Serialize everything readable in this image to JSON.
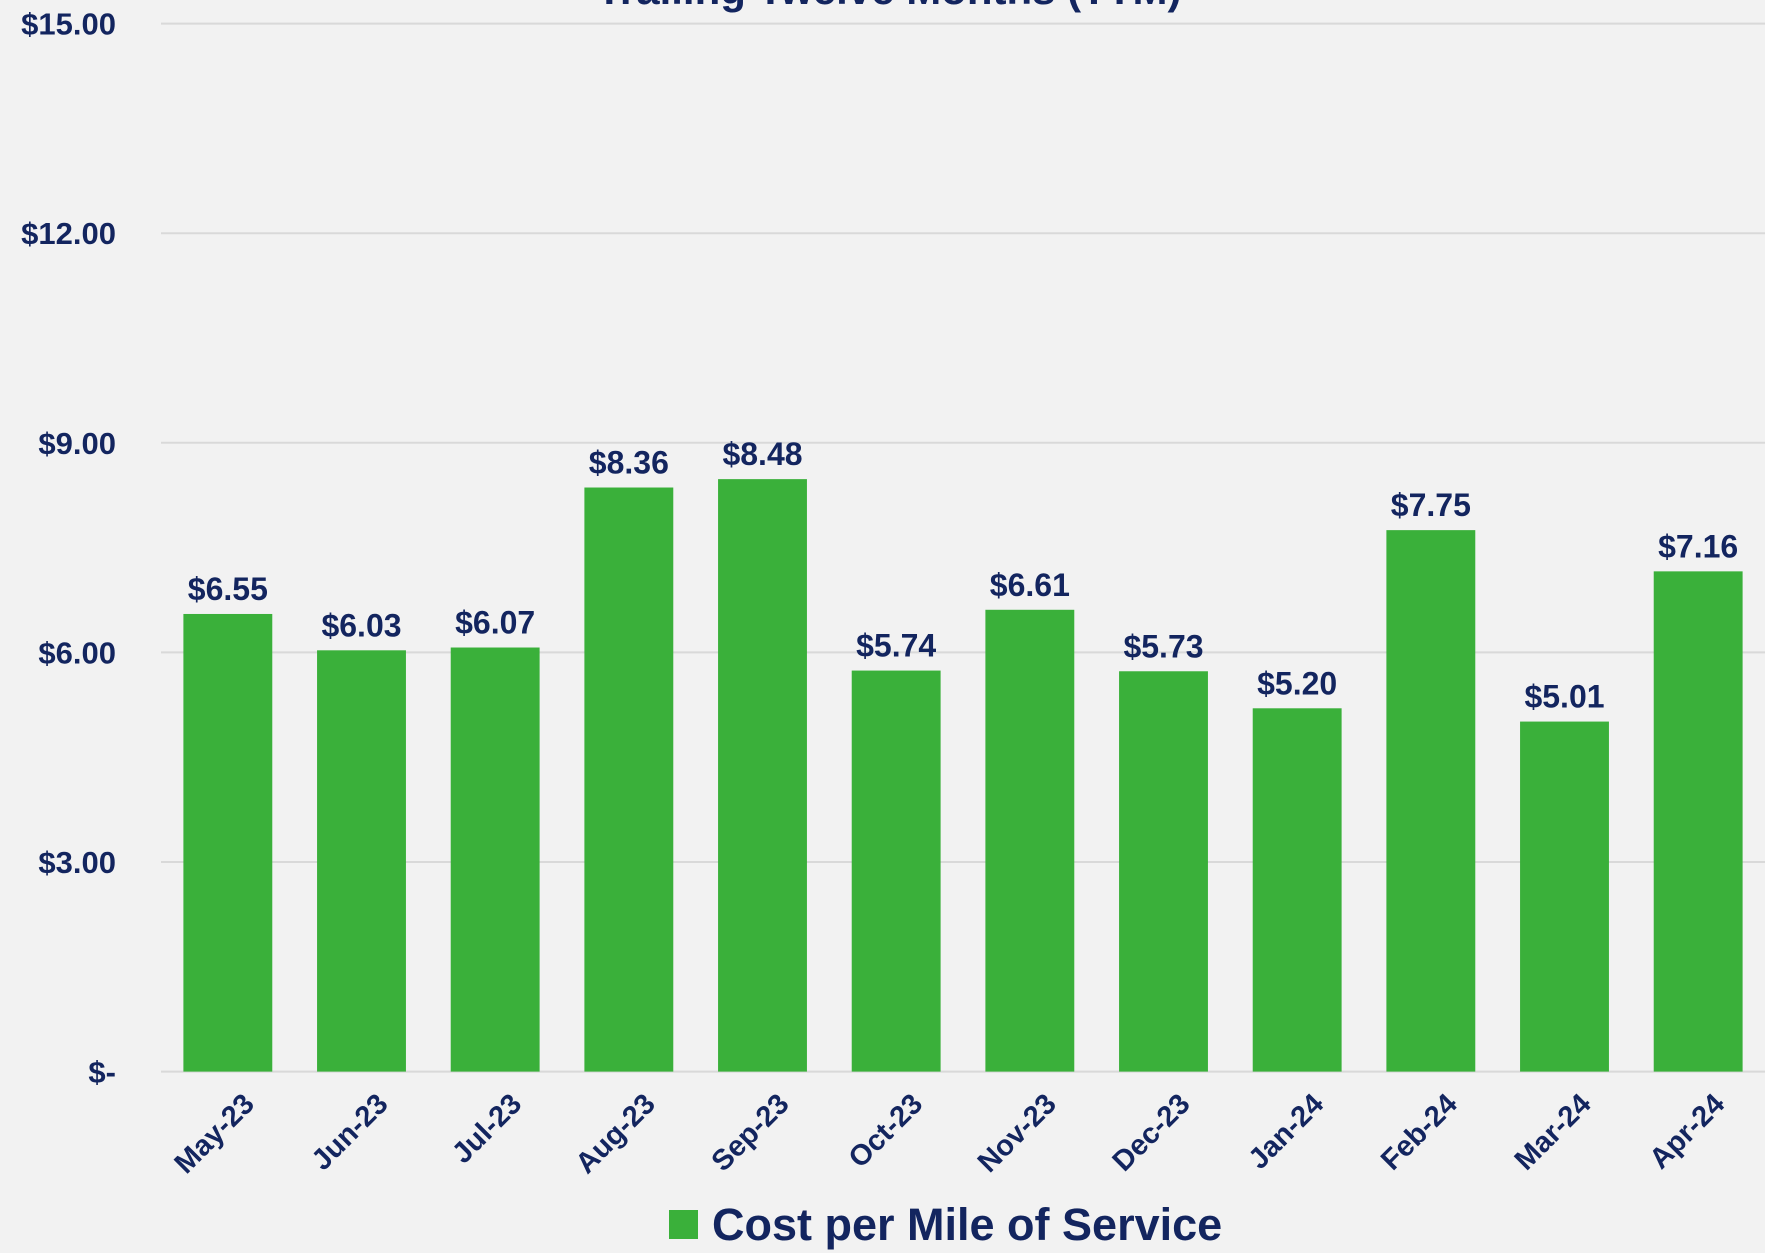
{
  "chart_data": {
    "type": "bar",
    "title": "Trailing Twelve Months (TTM)",
    "categories": [
      "May-23",
      "Jun-23",
      "Jul-23",
      "Aug-23",
      "Sep-23",
      "Oct-23",
      "Nov-23",
      "Dec-23",
      "Jan-24",
      "Feb-24",
      "Mar-24",
      "Apr-24"
    ],
    "series": [
      {
        "name": "Cost per Mile of Service",
        "color": "#3ab03a",
        "values": [
          6.55,
          6.03,
          6.07,
          8.36,
          8.48,
          5.74,
          6.61,
          5.73,
          5.2,
          7.75,
          5.01,
          7.16
        ],
        "value_labels": [
          "$6.55",
          "$6.03",
          "$6.07",
          "$8.36",
          "$8.48",
          "$5.74",
          "$6.61",
          "$5.73",
          "$5.20",
          "$7.75",
          "$5.01",
          "$7.16"
        ]
      }
    ],
    "ylim": [
      0,
      15
    ],
    "yticks": [
      {
        "value": 0,
        "label": "$-"
      },
      {
        "value": 3,
        "label": "$3.00"
      },
      {
        "value": 6,
        "label": "$6.00"
      },
      {
        "value": 9,
        "label": "$9.00"
      },
      {
        "value": 12,
        "label": "$12.00"
      },
      {
        "value": 15,
        "label": "$15.00"
      }
    ],
    "grid": true,
    "legend": "bottom"
  }
}
